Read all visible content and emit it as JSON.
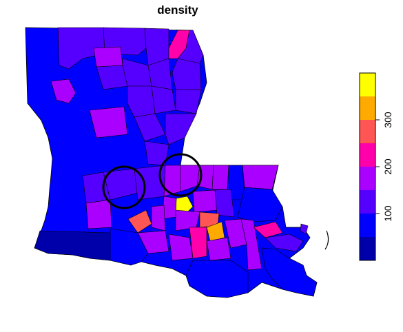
{
  "title": "density",
  "colors": {
    "background": "#FFFFFF",
    "border": "#000000",
    "palette": [
      "#0000AA",
      "#0000FF",
      "#5500FF",
      "#AA00FF",
      "#FF00AA",
      "#FF5555",
      "#FFAA00",
      "#FFFF00"
    ]
  },
  "legend": {
    "placement": "right",
    "orientation": "vertical",
    "classes": [
      {
        "from": 0,
        "to": 50,
        "color": "#0000AA"
      },
      {
        "from": 50,
        "to": 100,
        "color": "#0000FF"
      },
      {
        "from": 100,
        "to": 150,
        "color": "#5500FF"
      },
      {
        "from": 150,
        "to": 200,
        "color": "#AA00FF"
      },
      {
        "from": 200,
        "to": 250,
        "color": "#FF00AA"
      },
      {
        "from": 250,
        "to": 300,
        "color": "#FF5555"
      },
      {
        "from": 300,
        "to": 350,
        "color": "#FFAA00"
      },
      {
        "from": 350,
        "to": 400,
        "color": "#FFFF00"
      }
    ],
    "tick_values": [
      100,
      200,
      300
    ],
    "tick_labels": [
      "100",
      "200",
      "300"
    ]
  },
  "map": {
    "region": "Louisiana parishes",
    "variable": "density",
    "highlight_circles": 2
  }
}
